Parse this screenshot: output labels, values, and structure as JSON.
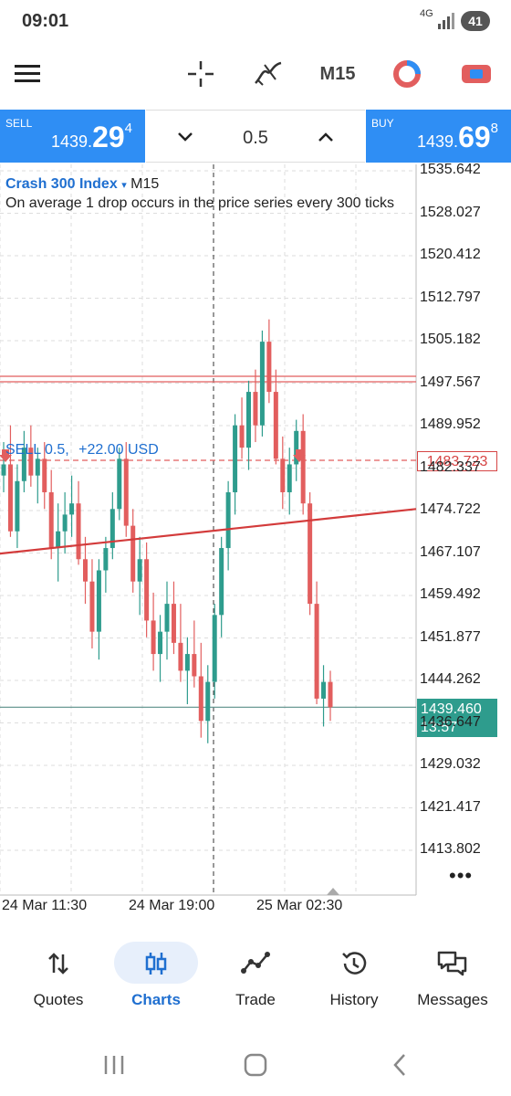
{
  "status_bar": {
    "time": "09:01",
    "network": "4G",
    "battery": "41"
  },
  "toolbar": {
    "menu_icon": "menu-icon",
    "crosshair_icon": "crosshair-icon",
    "indicators_icon": "indicators-icon",
    "timeframe": "M15",
    "one_click_icon": "one-click-trading-icon",
    "chart_type_icon": "chart-type-icon"
  },
  "trade_panel": {
    "sell": {
      "label": "SELL",
      "price_small": "1439.",
      "price_big": "29",
      "price_sup": "4"
    },
    "lot": {
      "value": "0.5",
      "decrease_icon": "chevron-down-icon",
      "increase_icon": "chevron-up-icon"
    },
    "buy": {
      "label": "BUY",
      "price_small": "1439.",
      "price_big": "69",
      "price_sup": "8"
    }
  },
  "chart": {
    "symbol": "Crash 300 Index",
    "timeframe": "M15",
    "description": "On average 1 drop occurs in the price series every 300 ticks",
    "order_label": {
      "type": "SELL 0.5,",
      "profit": "+22.00 USD"
    },
    "order_price": "1483.723",
    "current_price": "1439.460",
    "countdown": "13:57",
    "more_icon": "more-dots-icon",
    "colors": {
      "bull": "#2e9c8d",
      "bear": "#e25e5e",
      "line": "#d33b3b"
    }
  },
  "chart_data": {
    "type": "candlestick",
    "symbol": "Crash 300 Index",
    "timeframe": "M15",
    "y_ticks": [
      "1535.642",
      "1528.027",
      "1520.412",
      "1512.797",
      "1505.182",
      "1497.567",
      "1489.952",
      "1482.337",
      "1474.722",
      "1467.107",
      "1459.492",
      "1451.877",
      "1444.262",
      "1436.647",
      "1429.032",
      "1421.417",
      "1413.802"
    ],
    "x_ticks": [
      "24 Mar 11:30",
      "24 Mar 19:00",
      "25 Mar 02:30"
    ],
    "ylim": [
      1410.0,
      1538.0
    ],
    "horizontal_lines": [
      {
        "kind": "order",
        "price": 1483.723,
        "style": "dashed"
      },
      {
        "kind": "level",
        "price": 1498.3,
        "style": "solid"
      },
      {
        "kind": "current",
        "price": 1439.46,
        "style": "solid"
      }
    ],
    "trend_line": {
      "from": [
        "left edge",
        1467.0
      ],
      "to": [
        "right edge",
        1475.0
      ]
    },
    "candles": [
      [
        1481,
        1487,
        1478,
        1483
      ],
      [
        1483,
        1490,
        1470,
        1471
      ],
      [
        1471,
        1483,
        1468,
        1480
      ],
      [
        1480,
        1489,
        1478,
        1486
      ],
      [
        1486,
        1490,
        1479,
        1481
      ],
      [
        1481,
        1486,
        1476,
        1484
      ],
      [
        1484,
        1487,
        1475,
        1478
      ],
      [
        1478,
        1482,
        1466,
        1468
      ],
      [
        1468,
        1476,
        1462,
        1471
      ],
      [
        1471,
        1478,
        1467,
        1474
      ],
      [
        1474,
        1481,
        1470,
        1476
      ],
      [
        1476,
        1480,
        1465,
        1466
      ],
      [
        1466,
        1470,
        1458,
        1462
      ],
      [
        1462,
        1466,
        1450,
        1453
      ],
      [
        1453,
        1466,
        1448,
        1464
      ],
      [
        1464,
        1470,
        1460,
        1468
      ],
      [
        1468,
        1478,
        1466,
        1475
      ],
      [
        1475,
        1486,
        1473,
        1484
      ],
      [
        1484,
        1487,
        1470,
        1472
      ],
      [
        1472,
        1475,
        1460,
        1462
      ],
      [
        1462,
        1470,
        1456,
        1466
      ],
      [
        1466,
        1469,
        1452,
        1455
      ],
      [
        1455,
        1460,
        1446,
        1449
      ],
      [
        1449,
        1456,
        1444,
        1453
      ],
      [
        1453,
        1462,
        1448,
        1458
      ],
      [
        1458,
        1462,
        1449,
        1451
      ],
      [
        1451,
        1458,
        1444,
        1446
      ],
      [
        1446,
        1452,
        1440,
        1449
      ],
      [
        1449,
        1455,
        1443,
        1445
      ],
      [
        1445,
        1451,
        1434,
        1437
      ],
      [
        1437,
        1447,
        1433,
        1444
      ],
      [
        1444,
        1458,
        1441,
        1456
      ],
      [
        1456,
        1470,
        1452,
        1468
      ],
      [
        1468,
        1480,
        1464,
        1478
      ],
      [
        1478,
        1492,
        1474,
        1490
      ],
      [
        1490,
        1495,
        1484,
        1486
      ],
      [
        1486,
        1498,
        1482,
        1496
      ],
      [
        1496,
        1500,
        1487,
        1490
      ],
      [
        1490,
        1507,
        1488,
        1505
      ],
      [
        1505,
        1509,
        1494,
        1496
      ],
      [
        1496,
        1500,
        1483,
        1484
      ],
      [
        1484,
        1488,
        1475,
        1478
      ],
      [
        1478,
        1486,
        1474,
        1483
      ],
      [
        1483,
        1491,
        1480,
        1489
      ],
      [
        1489,
        1492,
        1474,
        1476
      ],
      [
        1476,
        1478,
        1456,
        1458
      ],
      [
        1458,
        1462,
        1440,
        1441
      ],
      [
        1441,
        1447,
        1436,
        1444
      ],
      [
        1444,
        1446,
        1437,
        1439.46
      ]
    ]
  },
  "bottom_nav": {
    "items": [
      {
        "label": "Quotes",
        "icon": "quotes-icon"
      },
      {
        "label": "Charts",
        "icon": "charts-icon",
        "active": true
      },
      {
        "label": "Trade",
        "icon": "trade-icon"
      },
      {
        "label": "History",
        "icon": "history-icon"
      },
      {
        "label": "Messages",
        "icon": "messages-icon"
      }
    ]
  },
  "system_nav": {
    "recents": "recents-icon",
    "home": "home-icon",
    "back": "back-icon"
  }
}
